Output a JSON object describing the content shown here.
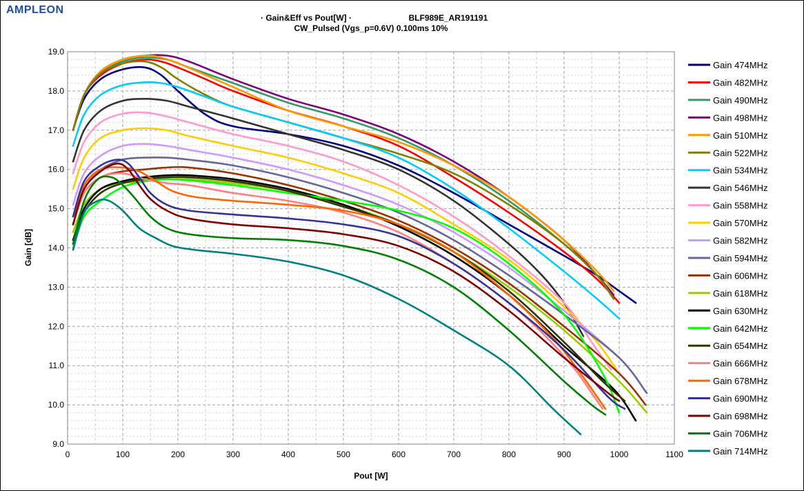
{
  "logo": "AMPLEON",
  "chart_data": {
    "type": "line",
    "title_line1_left": "· Gain&Eff vs Pout[W] ·",
    "title_line1_right": "BLF989E_AR191191",
    "title_line2": "CW_Pulsed (Vgs_p=0.6V)  0.100ms 10%",
    "xlabel": "Pout [W]",
    "ylabel": "Gain [dB]",
    "xlim": [
      0,
      1100
    ],
    "ylim": [
      9.0,
      19.0
    ],
    "xticks": [
      "0",
      "100",
      "200",
      "300",
      "400",
      "500",
      "600",
      "700",
      "800",
      "900",
      "1000",
      "1100"
    ],
    "yticks": [
      "9.0",
      "10.0",
      "11.0",
      "12.0",
      "13.0",
      "14.0",
      "15.0",
      "16.0",
      "17.0",
      "18.0",
      "19.0"
    ],
    "grid": true,
    "legend_position": "right",
    "series": [
      {
        "name": "Gain 474MHz",
        "color": "#000080",
        "x": [
          10,
          30,
          60,
          100,
          140,
          170,
          200,
          250,
          300,
          400,
          500,
          600,
          700,
          800,
          900,
          960,
          1000,
          1030
        ],
        "y": [
          17.0,
          17.8,
          18.3,
          18.55,
          18.6,
          18.4,
          18.0,
          17.4,
          17.1,
          16.9,
          16.6,
          16.1,
          15.4,
          14.6,
          13.8,
          13.3,
          12.9,
          12.6
        ]
      },
      {
        "name": "Gain 482MHz",
        "color": "#ff0000",
        "x": [
          10,
          30,
          60,
          100,
          140,
          170,
          200,
          250,
          300,
          400,
          500,
          600,
          700,
          800,
          900,
          960,
          1000
        ],
        "y": [
          17.0,
          17.9,
          18.4,
          18.7,
          18.8,
          18.75,
          18.6,
          18.3,
          18.0,
          17.5,
          17.1,
          16.6,
          15.8,
          14.9,
          13.9,
          13.2,
          12.6
        ]
      },
      {
        "name": "Gain 490MHz",
        "color": "#339966",
        "x": [
          10,
          30,
          60,
          100,
          140,
          180,
          220,
          300,
          400,
          500,
          600,
          700,
          800,
          900,
          960,
          985
        ],
        "y": [
          17.0,
          17.9,
          18.45,
          18.75,
          18.85,
          18.8,
          18.6,
          18.2,
          17.7,
          17.3,
          16.8,
          16.1,
          15.2,
          14.1,
          13.3,
          12.8
        ]
      },
      {
        "name": "Gain 498MHz",
        "color": "#800080",
        "x": [
          10,
          30,
          60,
          100,
          140,
          180,
          220,
          300,
          400,
          500,
          600,
          700,
          800,
          900,
          960,
          990
        ],
        "y": [
          17.0,
          17.9,
          18.5,
          18.8,
          18.9,
          18.9,
          18.75,
          18.3,
          17.8,
          17.4,
          16.9,
          16.2,
          15.3,
          14.2,
          13.3,
          12.8
        ]
      },
      {
        "name": "Gain 510MHz",
        "color": "#ff9900",
        "x": [
          10,
          30,
          60,
          100,
          140,
          170,
          210,
          300,
          400,
          500,
          600,
          700,
          800,
          900,
          960,
          990
        ],
        "y": [
          17.0,
          17.9,
          18.5,
          18.8,
          18.9,
          18.85,
          18.65,
          18.1,
          17.5,
          17.1,
          16.7,
          16.1,
          15.3,
          14.2,
          13.4,
          12.9
        ]
      },
      {
        "name": "Gain 522MHz",
        "color": "#808000",
        "x": [
          10,
          30,
          60,
          100,
          140,
          170,
          200,
          250,
          300,
          400,
          500,
          600,
          700,
          800,
          900,
          960,
          990
        ],
        "y": [
          17.0,
          17.9,
          18.45,
          18.7,
          18.75,
          18.6,
          18.3,
          17.9,
          17.6,
          17.2,
          16.8,
          16.4,
          15.9,
          15.1,
          14.1,
          13.3,
          12.7
        ]
      },
      {
        "name": "Gain 534MHz",
        "color": "#00ccff",
        "x": [
          10,
          30,
          60,
          100,
          140,
          170,
          200,
          250,
          300,
          400,
          500,
          600,
          700,
          800,
          900,
          960,
          1000
        ],
        "y": [
          16.6,
          17.4,
          17.9,
          18.15,
          18.22,
          18.2,
          18.1,
          17.85,
          17.6,
          17.2,
          16.8,
          16.3,
          15.5,
          14.5,
          13.4,
          12.7,
          12.2
        ]
      },
      {
        "name": "Gain 546MHz",
        "color": "#333333",
        "x": [
          10,
          30,
          60,
          100,
          140,
          180,
          220,
          300,
          400,
          500,
          600,
          700,
          800,
          860,
          900,
          935
        ],
        "y": [
          16.2,
          17.0,
          17.5,
          17.75,
          17.8,
          17.75,
          17.6,
          17.3,
          16.9,
          16.5,
          16.0,
          15.2,
          14.1,
          13.3,
          12.6,
          11.75
        ]
      },
      {
        "name": "Gain 558MHz",
        "color": "#ff99cc",
        "x": [
          10,
          30,
          60,
          100,
          140,
          180,
          220,
          300,
          400,
          500,
          600,
          700,
          800,
          900,
          950,
          985
        ],
        "y": [
          15.9,
          16.7,
          17.2,
          17.42,
          17.45,
          17.35,
          17.2,
          16.9,
          16.6,
          16.2,
          15.6,
          14.8,
          13.8,
          12.6,
          11.6,
          10.9
        ]
      },
      {
        "name": "Gain 570MHz",
        "color": "#ffcc00",
        "x": [
          10,
          30,
          60,
          100,
          140,
          180,
          220,
          300,
          400,
          500,
          600,
          700,
          800,
          900,
          960,
          995
        ],
        "y": [
          15.5,
          16.3,
          16.8,
          17.0,
          17.05,
          17.0,
          16.85,
          16.6,
          16.3,
          15.9,
          15.4,
          14.6,
          13.7,
          12.5,
          11.6,
          10.9
        ]
      },
      {
        "name": "Gain 582MHz",
        "color": "#cc99ff",
        "x": [
          10,
          30,
          60,
          100,
          140,
          180,
          220,
          300,
          400,
          500,
          600,
          700,
          800,
          900,
          960,
          1000
        ],
        "y": [
          15.1,
          15.9,
          16.35,
          16.6,
          16.65,
          16.6,
          16.5,
          16.3,
          16.0,
          15.6,
          15.1,
          14.4,
          13.5,
          12.4,
          11.7,
          11.2
        ]
      },
      {
        "name": "Gain 594MHz",
        "color": "#666699",
        "x": [
          10,
          30,
          60,
          100,
          140,
          180,
          220,
          300,
          400,
          500,
          600,
          700,
          800,
          900,
          1000,
          1050
        ],
        "y": [
          14.8,
          15.6,
          16.0,
          16.25,
          16.3,
          16.3,
          16.25,
          16.1,
          15.8,
          15.4,
          14.9,
          14.2,
          13.3,
          12.3,
          11.2,
          10.3
        ]
      },
      {
        "name": "Gain 606MHz",
        "color": "#993300",
        "x": [
          10,
          30,
          60,
          100,
          140,
          180,
          220,
          300,
          400,
          500,
          600,
          700,
          800,
          900,
          1000,
          1048
        ],
        "y": [
          14.6,
          15.4,
          15.8,
          15.95,
          16.0,
          16.05,
          16.05,
          15.9,
          15.6,
          15.2,
          14.7,
          14.0,
          13.1,
          12.0,
          10.8,
          10.0
        ]
      },
      {
        "name": "Gain 618MHz",
        "color": "#99cc00",
        "x": [
          10,
          30,
          60,
          100,
          140,
          180,
          220,
          300,
          400,
          500,
          600,
          700,
          800,
          900,
          1000,
          1050
        ],
        "y": [
          14.4,
          15.1,
          15.5,
          15.65,
          15.7,
          15.75,
          15.75,
          15.65,
          15.45,
          15.1,
          14.6,
          13.9,
          13.0,
          11.9,
          10.6,
          9.8
        ]
      },
      {
        "name": "Gain 630MHz",
        "color": "#000000",
        "x": [
          10,
          30,
          60,
          100,
          140,
          180,
          220,
          300,
          400,
          500,
          600,
          700,
          800,
          900,
          990,
          1030
        ],
        "y": [
          14.2,
          15.0,
          15.5,
          15.7,
          15.8,
          15.85,
          15.85,
          15.75,
          15.5,
          15.1,
          14.55,
          13.8,
          12.8,
          11.5,
          10.4,
          9.6
        ]
      },
      {
        "name": "Gain 642MHz",
        "color": "#00ff00",
        "x": [
          10,
          30,
          60,
          100,
          140,
          180,
          220,
          300,
          400,
          500,
          600,
          700,
          800,
          900,
          970,
          1000
        ],
        "y": [
          14.0,
          14.8,
          15.2,
          15.55,
          15.7,
          15.75,
          15.72,
          15.6,
          15.4,
          15.2,
          14.95,
          14.5,
          13.6,
          12.3,
          10.8,
          9.8
        ]
      },
      {
        "name": "Gain 654MHz",
        "color": "#333300",
        "x": [
          10,
          30,
          60,
          100,
          140,
          180,
          220,
          300,
          400,
          500,
          600,
          700,
          800,
          900,
          970,
          1010
        ],
        "y": [
          14.1,
          14.9,
          15.4,
          15.65,
          15.75,
          15.8,
          15.8,
          15.7,
          15.45,
          15.05,
          14.6,
          13.9,
          12.9,
          11.6,
          10.6,
          10.1
        ]
      },
      {
        "name": "Gain 666MHz",
        "color": "#ff8080",
        "x": [
          10,
          30,
          60,
          100,
          140,
          180,
          220,
          300,
          400,
          500,
          600,
          700,
          800,
          870,
          920,
          950,
          970
        ],
        "y": [
          14.6,
          15.4,
          15.8,
          15.9,
          15.75,
          15.65,
          15.6,
          15.4,
          15.2,
          14.9,
          14.4,
          13.6,
          12.6,
          11.7,
          10.9,
          10.3,
          9.9
        ]
      },
      {
        "name": "Gain 678MHz",
        "color": "#ff6600",
        "x": [
          10,
          30,
          60,
          100,
          130,
          160,
          190,
          230,
          300,
          400,
          500,
          600,
          700,
          800,
          880,
          930,
          975
        ],
        "y": [
          14.8,
          15.6,
          16.0,
          16.05,
          15.95,
          15.7,
          15.45,
          15.3,
          15.2,
          15.1,
          14.95,
          14.6,
          13.9,
          12.8,
          11.7,
          10.8,
          9.9
        ]
      },
      {
        "name": "Gain 690MHz",
        "color": "#333399",
        "x": [
          10,
          30,
          60,
          90,
          110,
          130,
          150,
          180,
          220,
          300,
          400,
          500,
          600,
          700,
          800,
          900,
          980,
          1010
        ],
        "y": [
          14.8,
          15.7,
          16.1,
          16.25,
          16.15,
          15.8,
          15.4,
          15.1,
          14.95,
          14.85,
          14.75,
          14.6,
          14.3,
          13.6,
          12.6,
          11.4,
          10.2,
          9.9
        ]
      },
      {
        "name": "Gain 698MHz",
        "color": "#800000",
        "x": [
          10,
          30,
          60,
          90,
          110,
          130,
          150,
          180,
          220,
          300,
          400,
          500,
          600,
          700,
          800,
          900,
          980,
          1000
        ],
        "y": [
          14.6,
          15.5,
          15.95,
          16.15,
          16.0,
          15.6,
          15.25,
          14.95,
          14.75,
          14.6,
          14.5,
          14.35,
          14.05,
          13.4,
          12.4,
          11.2,
          10.3,
          10.1
        ]
      },
      {
        "name": "Gain 706MHz",
        "color": "#008000",
        "x": [
          10,
          30,
          55,
          80,
          100,
          120,
          150,
          180,
          220,
          300,
          400,
          500,
          600,
          700,
          800,
          900,
          950,
          975
        ],
        "y": [
          14.1,
          15.2,
          15.75,
          15.8,
          15.6,
          15.3,
          14.8,
          14.5,
          14.35,
          14.25,
          14.2,
          14.05,
          13.7,
          13.0,
          11.9,
          10.6,
          10.0,
          9.75
        ]
      },
      {
        "name": "Gain 714MHz",
        "color": "#008080",
        "x": [
          10,
          30,
          55,
          75,
          100,
          130,
          160,
          190,
          230,
          300,
          400,
          500,
          600,
          700,
          800,
          880,
          930
        ],
        "y": [
          13.95,
          14.9,
          15.2,
          15.2,
          14.95,
          14.5,
          14.25,
          14.05,
          13.95,
          13.85,
          13.65,
          13.3,
          12.7,
          11.9,
          11.0,
          9.9,
          9.25
        ]
      }
    ]
  }
}
